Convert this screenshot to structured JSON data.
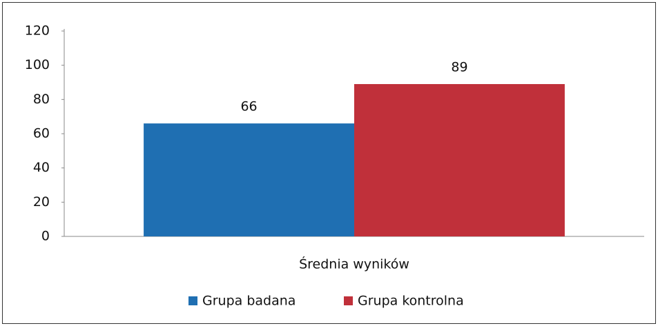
{
  "chart_data": {
    "type": "bar",
    "categories": [
      "Średnia wyników"
    ],
    "series": [
      {
        "name": "Grupa badana",
        "color": "#1f6fb2",
        "values": [
          66
        ]
      },
      {
        "name": "Grupa kontrolna",
        "color": "#c0303a",
        "values": [
          89
        ]
      }
    ],
    "ylim": [
      0,
      120
    ],
    "yticks": [
      0,
      20,
      40,
      60,
      80,
      100,
      120
    ],
    "grid": false,
    "legend": "bottom"
  }
}
